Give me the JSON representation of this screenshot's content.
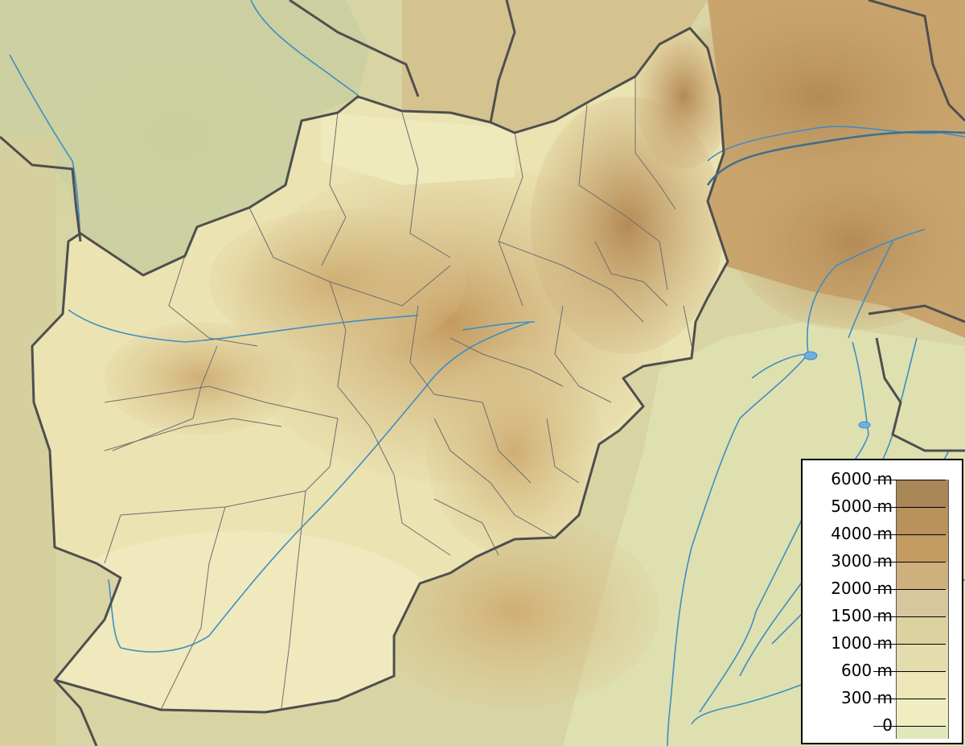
{
  "map": {
    "colors": {
      "water": "#3e8ec4",
      "country_border": "#4f4f4f",
      "province_border": "#6e6e6e",
      "lowland": "#dde4b8",
      "plain": "#e9e2b2",
      "highland": "#c9a46d",
      "mountain": "#a98759"
    }
  },
  "legend": {
    "entries": [
      {
        "label": "6000 m",
        "color": "#a98759"
      },
      {
        "label": "5000 m",
        "color": "#b8915d"
      },
      {
        "label": "4000 m",
        "color": "#c39b63"
      },
      {
        "label": "3000 m",
        "color": "#cdb07d"
      },
      {
        "label": "2000 m",
        "color": "#d6c79c"
      },
      {
        "label": "1500 m",
        "color": "#dbd29f"
      },
      {
        "label": "1000 m",
        "color": "#e3dcad"
      },
      {
        "label": "600 m",
        "color": "#ece6b8"
      },
      {
        "label": "300 m",
        "color": "#f0edc1"
      },
      {
        "label": "0",
        "color": "#e2e7bb"
      }
    ]
  }
}
